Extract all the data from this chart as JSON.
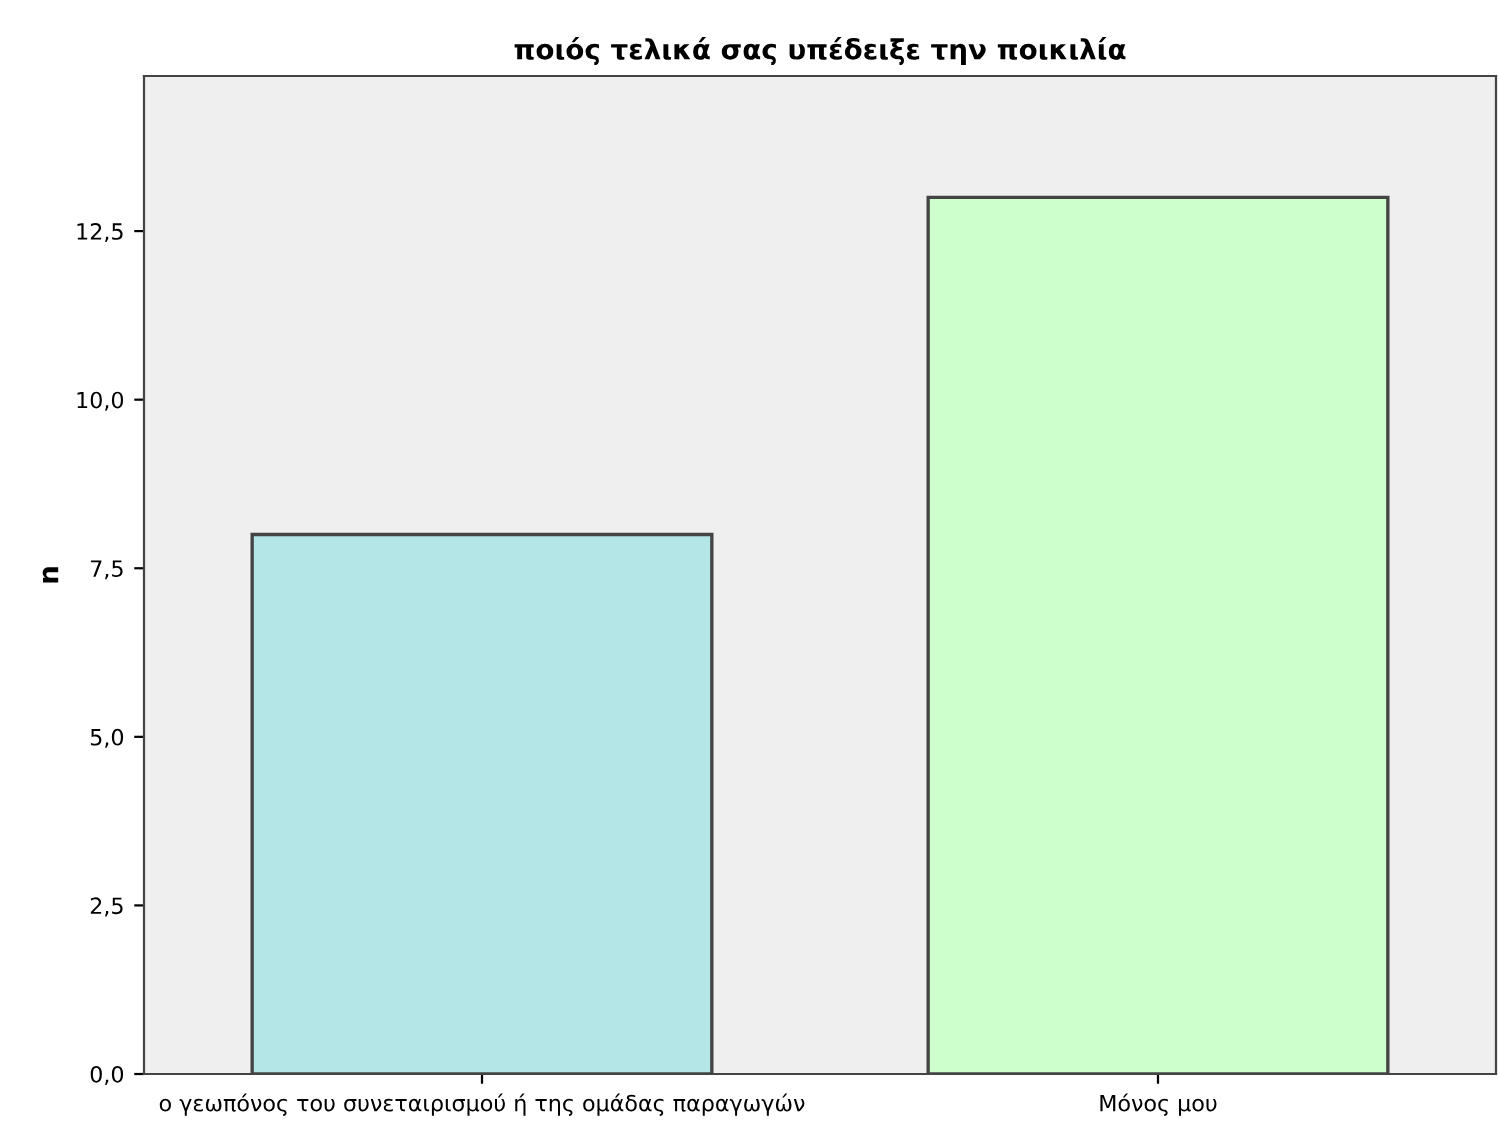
{
  "chart_data": {
    "type": "bar",
    "title": "ποιός τελικά σας υπέδειξε την ποικιλία",
    "ylabel": "n",
    "categories": [
      "ο γεωπόνος του συνεταιρισμού ή της ομάδας παραγωγών",
      "Μόνος μου"
    ],
    "values": [
      8,
      13
    ],
    "colors": [
      "#b4e6e8",
      "#ccffcc"
    ],
    "ylim": [
      0,
      14.8
    ],
    "yticks": [
      {
        "value": 0,
        "label": "0,0"
      },
      {
        "value": 2.5,
        "label": "2,5"
      },
      {
        "value": 5,
        "label": "5,0"
      },
      {
        "value": 7.5,
        "label": "7,5"
      },
      {
        "value": 10,
        "label": "10,0"
      },
      {
        "value": 12.5,
        "label": "12,5"
      }
    ],
    "grid": false,
    "legend": false
  }
}
